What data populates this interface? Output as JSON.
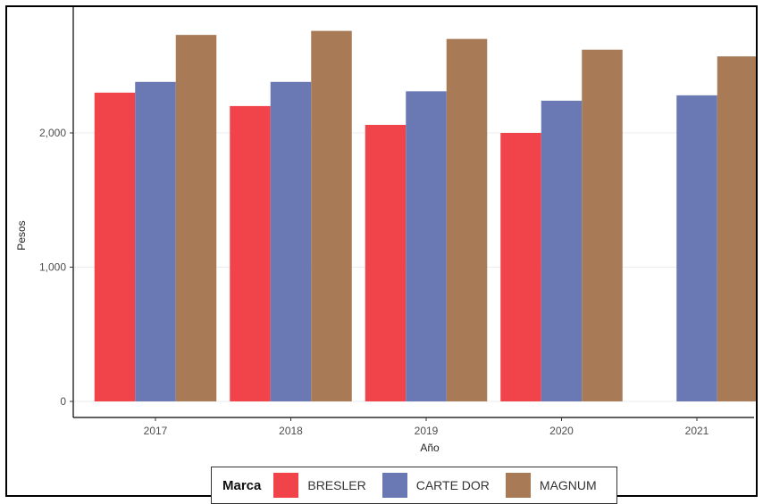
{
  "chart_data": {
    "type": "bar",
    "title": "",
    "xlabel": "Año",
    "ylabel": "Pesos",
    "categories": [
      "2017",
      "2018",
      "2019",
      "2020",
      "2021"
    ],
    "ylim": [
      0,
      2800
    ],
    "yticks": [
      0,
      1000,
      2000
    ],
    "ytick_labels": [
      "0",
      "1,000",
      "2,000"
    ],
    "grid": true,
    "legend_position": "bottom",
    "legend_title": "Marca",
    "series": [
      {
        "name": "BRESLER",
        "color": "#f0444a",
        "values": [
          2300,
          2200,
          2060,
          2000,
          null
        ]
      },
      {
        "name": "CARTE DOR",
        "color": "#6a78b4",
        "values": [
          2380,
          2380,
          2310,
          2240,
          2280
        ]
      },
      {
        "name": "MAGNUM",
        "color": "#a87a55",
        "values": [
          2730,
          2760,
          2700,
          2620,
          2570
        ]
      }
    ]
  }
}
